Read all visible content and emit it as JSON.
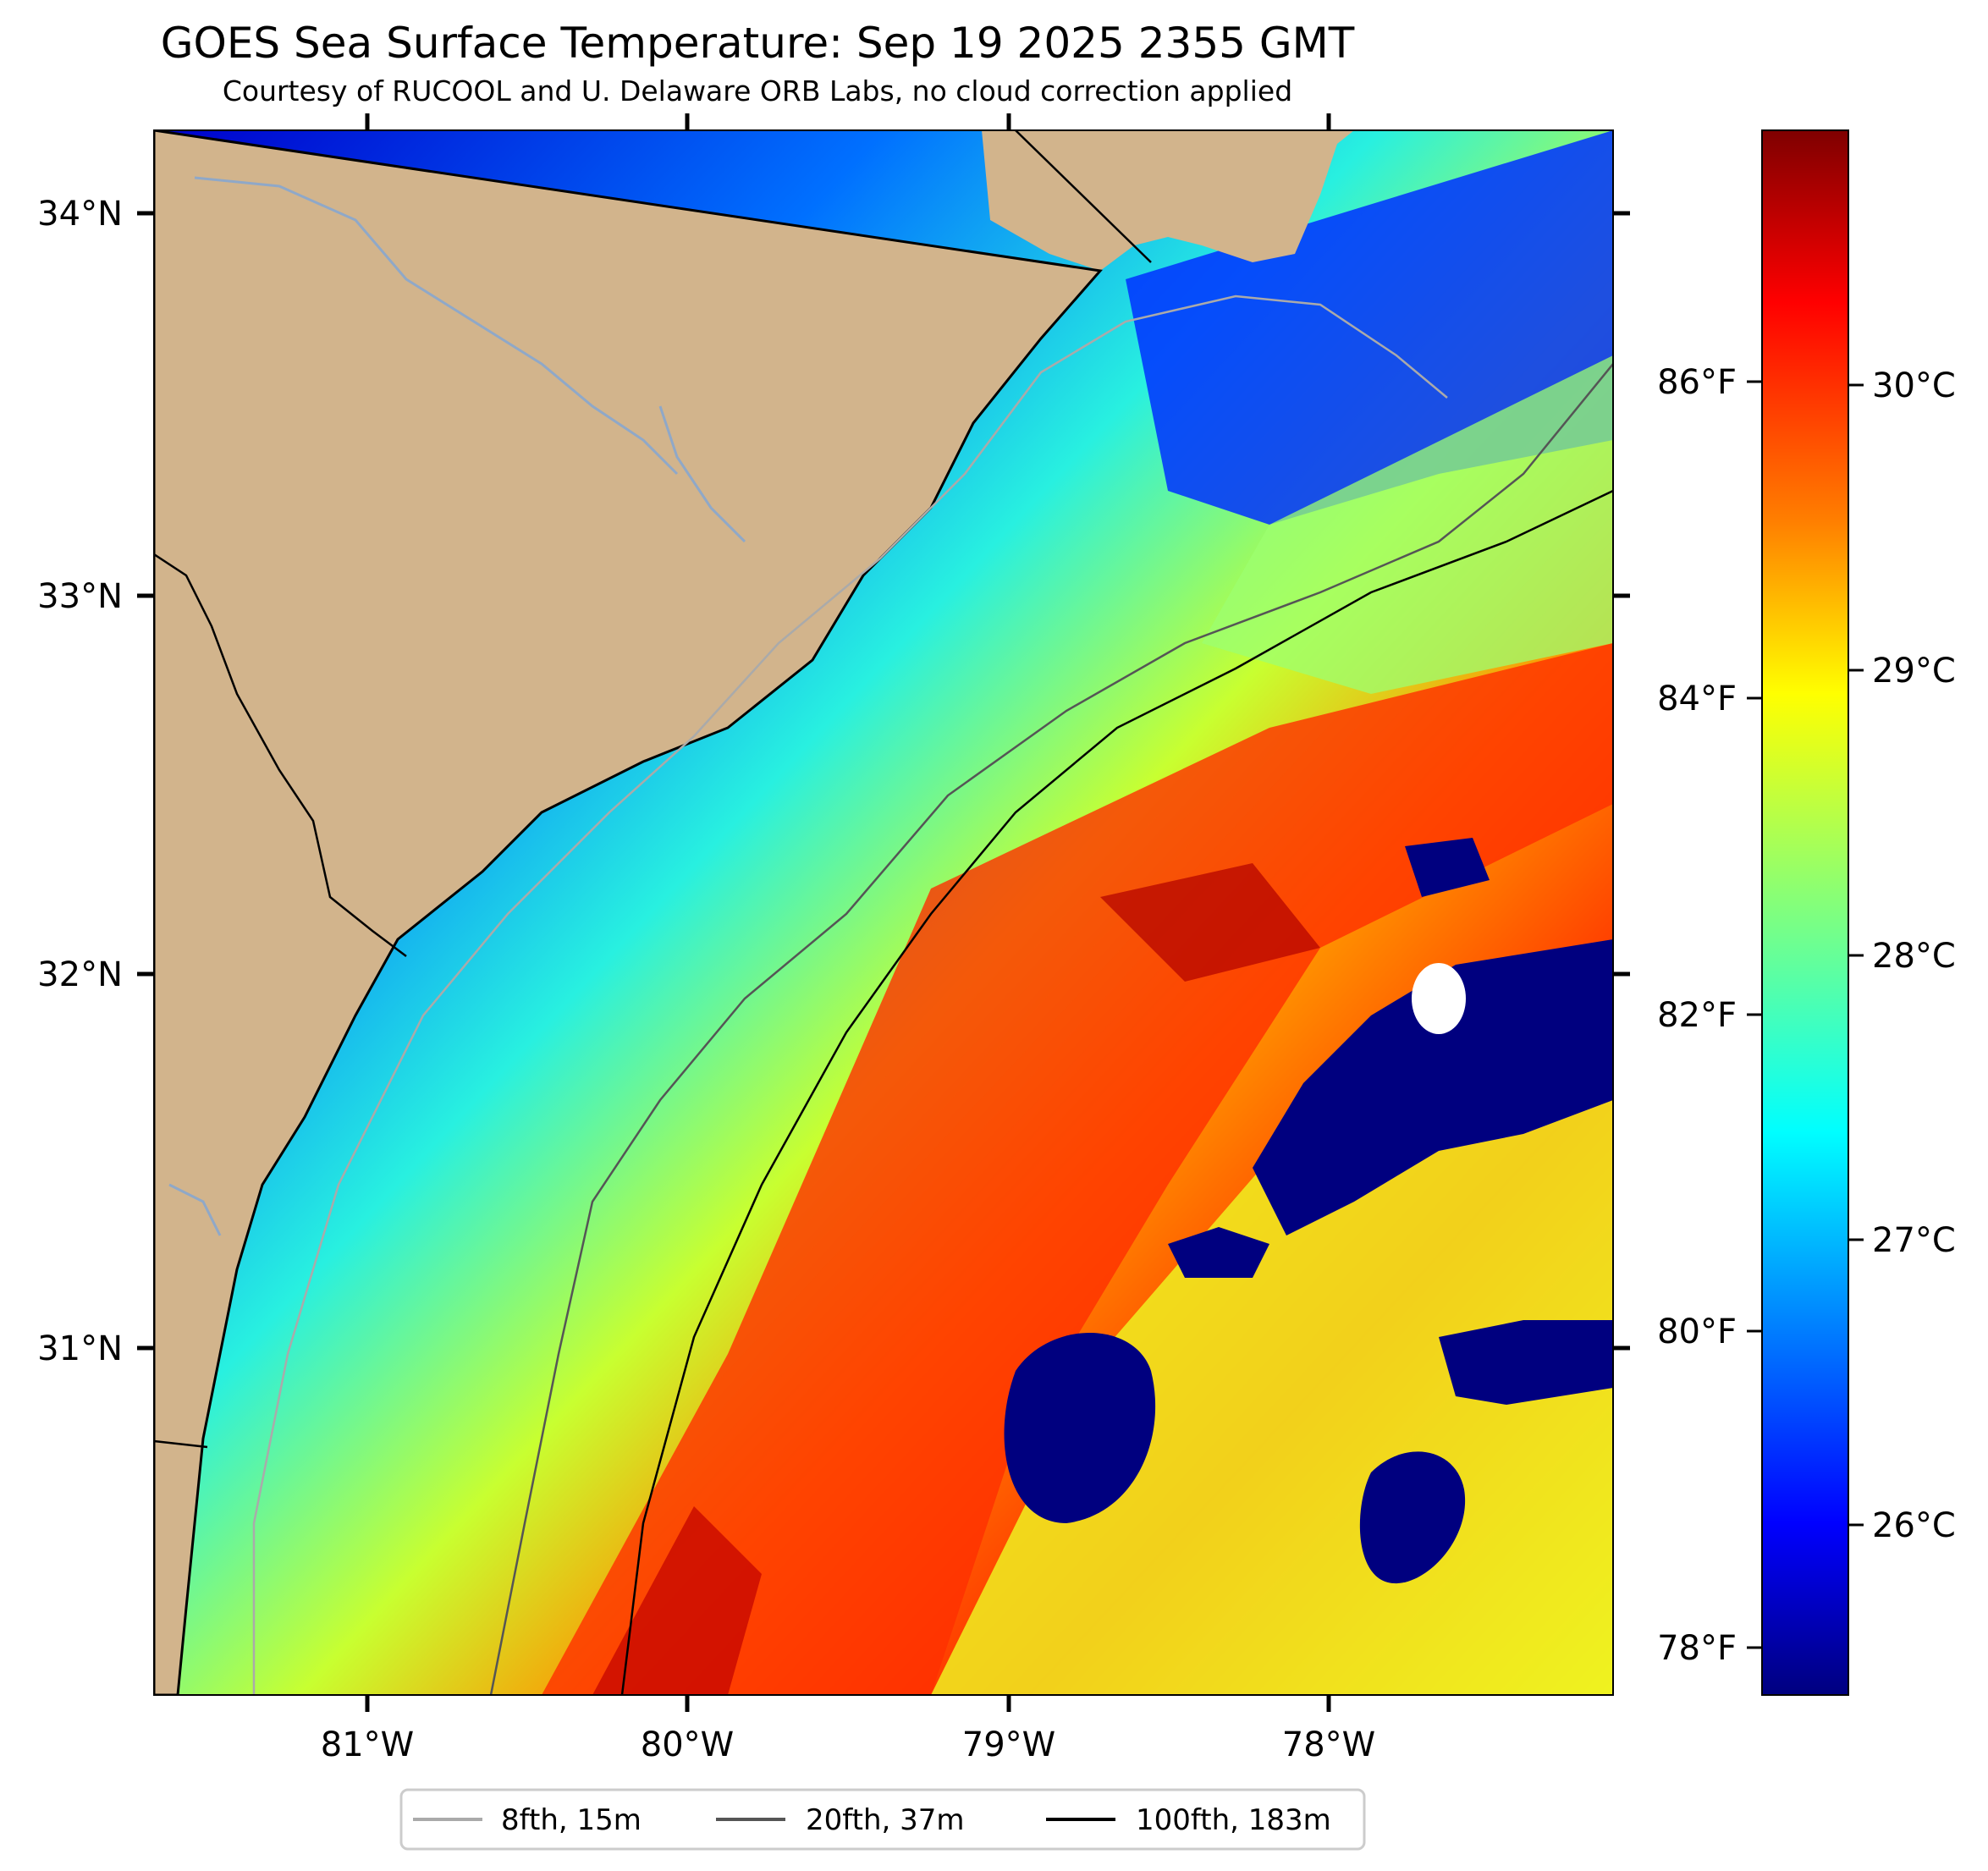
{
  "title": "GOES Sea Surface Temperature: Sep 19 2025 2355 GMT",
  "subtitle": "Courtesy of RUCOOL and U. Delaware ORB Labs, no cloud correction applied",
  "lat_labels": [
    "34°N",
    "33°N",
    "32°N",
    "31°N"
  ],
  "lon_labels": [
    "81°W",
    "80°W",
    "79°W",
    "78°W"
  ],
  "colorbar": {
    "fahrenheit_labels": [
      "86°F",
      "84°F",
      "82°F",
      "80°F",
      "78°F"
    ],
    "celsius_labels": [
      "30°C",
      "29°C",
      "28°C",
      "27°C",
      "26°C"
    ],
    "colormap": "jet",
    "colors": [
      "#00007f",
      "#0000ff",
      "#007fff",
      "#00ffff",
      "#7fff7f",
      "#ffff00",
      "#ff7f00",
      "#ff0000",
      "#7f0000"
    ]
  },
  "legend": [
    {
      "label": "8fth, 15m",
      "color": "#aaaaaa"
    },
    {
      "label": "20fth, 37m",
      "color": "#555555"
    },
    {
      "label": "100fth, 183m",
      "color": "#000000"
    }
  ],
  "colors": {
    "land": "#d2b48c",
    "river": "#8fa8c8",
    "coastline": "#000000",
    "no_data": "#ffffff"
  }
}
